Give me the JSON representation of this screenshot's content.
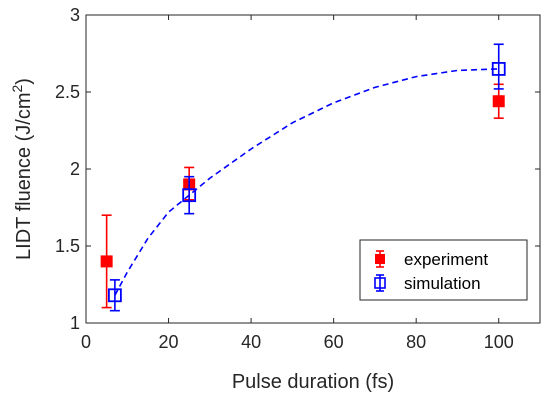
{
  "chart_data": {
    "type": "scatter",
    "xlabel": "Pulse duration (fs)",
    "ylabel_prefix": "LIDT fluence (J/cm",
    "ylabel_sup": "2",
    "ylabel_suffix": ")",
    "xlim": [
      0,
      110
    ],
    "ylim": [
      1,
      3
    ],
    "x_ticks": [
      0,
      20,
      40,
      60,
      80,
      100
    ],
    "y_ticks": [
      1,
      1.5,
      2,
      2.5,
      3
    ],
    "x_tick_labels": [
      "0",
      "20",
      "40",
      "60",
      "80",
      "100"
    ],
    "y_tick_labels": [
      "1",
      "1.5",
      "2",
      "2.5",
      "3"
    ],
    "grid": false,
    "legend_position": "bottom-right",
    "series": [
      {
        "name": "experiment",
        "marker": "filled-square",
        "color": "#ff0000",
        "x": [
          5,
          25,
          100
        ],
        "y": [
          1.4,
          1.9,
          2.44
        ],
        "err_low": [
          0.3,
          0.1,
          0.11
        ],
        "err_high": [
          0.3,
          0.11,
          0.11
        ]
      },
      {
        "name": "simulation",
        "marker": "open-square",
        "color": "#0000ff",
        "x": [
          7,
          25,
          100
        ],
        "y": [
          1.18,
          1.83,
          2.65
        ],
        "err_low": [
          0.1,
          0.12,
          0.13
        ],
        "err_high": [
          0.1,
          0.12,
          0.16
        ]
      }
    ],
    "fit_curve": {
      "color": "#0000ff",
      "style": "dashed",
      "x": [
        7,
        10,
        15,
        20,
        25,
        30,
        40,
        50,
        60,
        70,
        80,
        90,
        100
      ],
      "y": [
        1.18,
        1.33,
        1.55,
        1.72,
        1.83,
        1.94,
        2.13,
        2.3,
        2.43,
        2.53,
        2.6,
        2.64,
        2.65
      ]
    }
  }
}
